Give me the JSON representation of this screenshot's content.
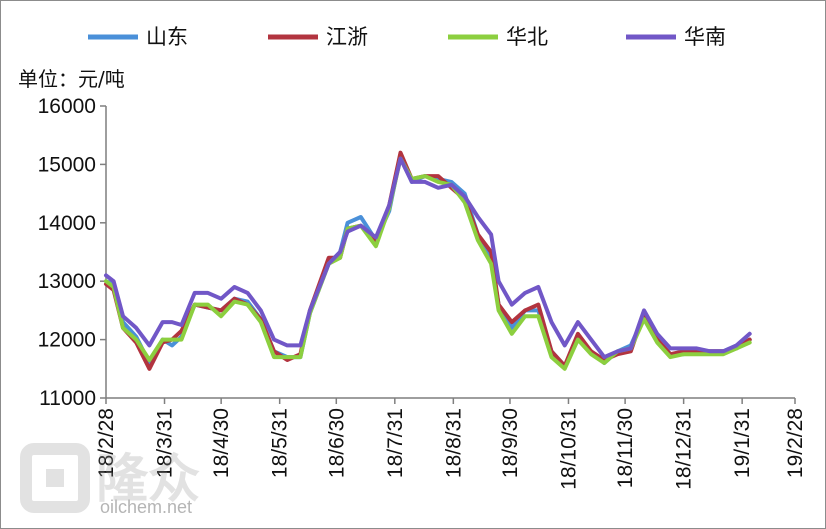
{
  "chart_data": {
    "type": "line",
    "unit_label": "单位：元/吨",
    "ylim": [
      11000,
      16000
    ],
    "y_ticks": [
      "11000",
      "12000",
      "13000",
      "14000",
      "15000",
      "16000"
    ],
    "x_ticks": [
      "18/2/28",
      "18/3/31",
      "18/4/30",
      "18/5/31",
      "18/6/30",
      "18/7/31",
      "18/8/31",
      "18/9/30",
      "18/10/31",
      "18/11/30",
      "18/12/31",
      "19/1/31",
      "19/2/28"
    ],
    "grid": false,
    "legend_position": "top",
    "series": [
      {
        "name": "山东",
        "color": "#4a90d9",
        "points": [
          [
            "2018-02-28",
            13000
          ],
          [
            "2018-03-04",
            12950
          ],
          [
            "2018-03-09",
            12300
          ],
          [
            "2018-03-16",
            12050
          ],
          [
            "2018-03-23",
            11600
          ],
          [
            "2018-03-30",
            12000
          ],
          [
            "2018-04-04",
            11900
          ],
          [
            "2018-04-09",
            12050
          ],
          [
            "2018-04-16",
            12600
          ],
          [
            "2018-04-23",
            12550
          ],
          [
            "2018-04-30",
            12500
          ],
          [
            "2018-05-07",
            12700
          ],
          [
            "2018-05-14",
            12650
          ],
          [
            "2018-05-21",
            12350
          ],
          [
            "2018-05-28",
            11800
          ],
          [
            "2018-06-04",
            11700
          ],
          [
            "2018-06-11",
            11700
          ],
          [
            "2018-06-16",
            12450
          ],
          [
            "2018-06-26",
            13300
          ],
          [
            "2018-07-02",
            13500
          ],
          [
            "2018-07-06",
            14000
          ],
          [
            "2018-07-13",
            14100
          ],
          [
            "2018-07-21",
            13700
          ],
          [
            "2018-07-28",
            14200
          ],
          [
            "2018-08-03",
            15150
          ],
          [
            "2018-08-09",
            14700
          ],
          [
            "2018-08-16",
            14800
          ],
          [
            "2018-08-23",
            14750
          ],
          [
            "2018-08-30",
            14700
          ],
          [
            "2018-09-06",
            14500
          ],
          [
            "2018-09-13",
            13800
          ],
          [
            "2018-09-20",
            13400
          ],
          [
            "2018-09-24",
            12600
          ],
          [
            "2018-10-01",
            12200
          ],
          [
            "2018-10-08",
            12500
          ],
          [
            "2018-10-15",
            12500
          ],
          [
            "2018-10-22",
            11800
          ],
          [
            "2018-10-29",
            11550
          ],
          [
            "2018-11-05",
            12000
          ],
          [
            "2018-11-12",
            11800
          ],
          [
            "2018-11-19",
            11600
          ],
          [
            "2018-11-26",
            11800
          ],
          [
            "2018-12-03",
            11900
          ],
          [
            "2018-12-10",
            12400
          ],
          [
            "2018-12-17",
            12000
          ],
          [
            "2018-12-24",
            11750
          ],
          [
            "2018-12-31",
            11750
          ],
          [
            "2019-01-07",
            11800
          ],
          [
            "2019-01-14",
            11800
          ],
          [
            "2019-01-21",
            11800
          ],
          [
            "2019-01-28",
            11900
          ],
          [
            "2019-02-04",
            12000
          ]
        ]
      },
      {
        "name": "江浙",
        "color": "#b2343f",
        "points": [
          [
            "2018-02-28",
            12950
          ],
          [
            "2018-03-04",
            12850
          ],
          [
            "2018-03-09",
            12200
          ],
          [
            "2018-03-16",
            11950
          ],
          [
            "2018-03-23",
            11500
          ],
          [
            "2018-03-30",
            11950
          ],
          [
            "2018-04-04",
            12000
          ],
          [
            "2018-04-09",
            12150
          ],
          [
            "2018-04-16",
            12600
          ],
          [
            "2018-04-23",
            12550
          ],
          [
            "2018-04-30",
            12500
          ],
          [
            "2018-05-07",
            12700
          ],
          [
            "2018-05-14",
            12600
          ],
          [
            "2018-05-21",
            12350
          ],
          [
            "2018-05-28",
            11800
          ],
          [
            "2018-06-04",
            11650
          ],
          [
            "2018-06-11",
            11750
          ],
          [
            "2018-06-16",
            12500
          ],
          [
            "2018-06-26",
            13400
          ],
          [
            "2018-07-02",
            13400
          ],
          [
            "2018-07-06",
            13900
          ],
          [
            "2018-07-13",
            13950
          ],
          [
            "2018-07-21",
            13700
          ],
          [
            "2018-07-28",
            14300
          ],
          [
            "2018-08-03",
            15200
          ],
          [
            "2018-08-09",
            14750
          ],
          [
            "2018-08-16",
            14800
          ],
          [
            "2018-08-23",
            14800
          ],
          [
            "2018-08-30",
            14600
          ],
          [
            "2018-09-06",
            14400
          ],
          [
            "2018-09-13",
            13800
          ],
          [
            "2018-09-20",
            13500
          ],
          [
            "2018-09-24",
            12600
          ],
          [
            "2018-10-01",
            12300
          ],
          [
            "2018-10-08",
            12500
          ],
          [
            "2018-10-15",
            12600
          ],
          [
            "2018-10-22",
            11800
          ],
          [
            "2018-10-29",
            11550
          ],
          [
            "2018-11-05",
            12100
          ],
          [
            "2018-11-12",
            11800
          ],
          [
            "2018-11-19",
            11650
          ],
          [
            "2018-11-26",
            11750
          ],
          [
            "2018-12-03",
            11800
          ],
          [
            "2018-12-10",
            12450
          ],
          [
            "2018-12-17",
            12000
          ],
          [
            "2018-12-24",
            11750
          ],
          [
            "2018-12-31",
            11800
          ],
          [
            "2019-01-07",
            11800
          ],
          [
            "2019-01-14",
            11800
          ],
          [
            "2019-01-21",
            11800
          ],
          [
            "2019-01-28",
            11850
          ],
          [
            "2019-02-04",
            12000
          ]
        ]
      },
      {
        "name": "华北",
        "color": "#8ccf3f",
        "points": [
          [
            "2018-02-28",
            13000
          ],
          [
            "2018-03-04",
            12900
          ],
          [
            "2018-03-09",
            12200
          ],
          [
            "2018-03-16",
            12000
          ],
          [
            "2018-03-23",
            11650
          ],
          [
            "2018-03-30",
            12000
          ],
          [
            "2018-04-04",
            12000
          ],
          [
            "2018-04-09",
            12000
          ],
          [
            "2018-04-16",
            12600
          ],
          [
            "2018-04-23",
            12600
          ],
          [
            "2018-04-30",
            12400
          ],
          [
            "2018-05-07",
            12650
          ],
          [
            "2018-05-14",
            12600
          ],
          [
            "2018-05-21",
            12300
          ],
          [
            "2018-05-28",
            11700
          ],
          [
            "2018-06-04",
            11700
          ],
          [
            "2018-06-11",
            11700
          ],
          [
            "2018-06-16",
            12450
          ],
          [
            "2018-06-26",
            13300
          ],
          [
            "2018-07-02",
            13400
          ],
          [
            "2018-07-06",
            13900
          ],
          [
            "2018-07-13",
            13950
          ],
          [
            "2018-07-21",
            13600
          ],
          [
            "2018-07-28",
            14250
          ],
          [
            "2018-08-03",
            15100
          ],
          [
            "2018-08-09",
            14750
          ],
          [
            "2018-08-16",
            14800
          ],
          [
            "2018-08-23",
            14700
          ],
          [
            "2018-08-30",
            14650
          ],
          [
            "2018-09-06",
            14350
          ],
          [
            "2018-09-13",
            13700
          ],
          [
            "2018-09-20",
            13300
          ],
          [
            "2018-09-24",
            12500
          ],
          [
            "2018-10-01",
            12100
          ],
          [
            "2018-10-08",
            12400
          ],
          [
            "2018-10-15",
            12400
          ],
          [
            "2018-10-22",
            11700
          ],
          [
            "2018-10-29",
            11500
          ],
          [
            "2018-11-05",
            12000
          ],
          [
            "2018-11-12",
            11750
          ],
          [
            "2018-11-19",
            11600
          ],
          [
            "2018-11-26",
            11800
          ],
          [
            "2018-12-03",
            11850
          ],
          [
            "2018-12-10",
            12350
          ],
          [
            "2018-12-17",
            11950
          ],
          [
            "2018-12-24",
            11700
          ],
          [
            "2018-12-31",
            11750
          ],
          [
            "2019-01-07",
            11750
          ],
          [
            "2019-01-14",
            11750
          ],
          [
            "2019-01-21",
            11750
          ],
          [
            "2019-01-28",
            11850
          ],
          [
            "2019-02-04",
            11950
          ]
        ]
      },
      {
        "name": "华南",
        "color": "#7157c7",
        "points": [
          [
            "2018-02-28",
            13100
          ],
          [
            "2018-03-04",
            13000
          ],
          [
            "2018-03-09",
            12400
          ],
          [
            "2018-03-16",
            12200
          ],
          [
            "2018-03-23",
            11900
          ],
          [
            "2018-03-30",
            12300
          ],
          [
            "2018-04-04",
            12300
          ],
          [
            "2018-04-09",
            12250
          ],
          [
            "2018-04-16",
            12800
          ],
          [
            "2018-04-23",
            12800
          ],
          [
            "2018-04-30",
            12700
          ],
          [
            "2018-05-07",
            12900
          ],
          [
            "2018-05-14",
            12800
          ],
          [
            "2018-05-21",
            12500
          ],
          [
            "2018-05-28",
            12000
          ],
          [
            "2018-06-04",
            11900
          ],
          [
            "2018-06-11",
            11900
          ],
          [
            "2018-06-16",
            12500
          ],
          [
            "2018-06-26",
            13300
          ],
          [
            "2018-07-02",
            13500
          ],
          [
            "2018-07-06",
            13850
          ],
          [
            "2018-07-13",
            13950
          ],
          [
            "2018-07-21",
            13750
          ],
          [
            "2018-07-28",
            14300
          ],
          [
            "2018-08-03",
            15100
          ],
          [
            "2018-08-09",
            14700
          ],
          [
            "2018-08-16",
            14700
          ],
          [
            "2018-08-23",
            14600
          ],
          [
            "2018-08-30",
            14650
          ],
          [
            "2018-09-06",
            14450
          ],
          [
            "2018-09-13",
            14100
          ],
          [
            "2018-09-20",
            13800
          ],
          [
            "2018-09-24",
            13000
          ],
          [
            "2018-10-01",
            12600
          ],
          [
            "2018-10-08",
            12800
          ],
          [
            "2018-10-15",
            12900
          ],
          [
            "2018-10-22",
            12300
          ],
          [
            "2018-10-29",
            11900
          ],
          [
            "2018-11-05",
            12300
          ],
          [
            "2018-11-12",
            12000
          ],
          [
            "2018-11-19",
            11700
          ],
          [
            "2018-11-26",
            11800
          ],
          [
            "2018-12-03",
            11850
          ],
          [
            "2018-12-10",
            12500
          ],
          [
            "2018-12-17",
            12100
          ],
          [
            "2018-12-24",
            11850
          ],
          [
            "2018-12-31",
            11850
          ],
          [
            "2019-01-07",
            11850
          ],
          [
            "2019-01-14",
            11800
          ],
          [
            "2019-01-21",
            11800
          ],
          [
            "2019-01-28",
            11900
          ],
          [
            "2019-02-04",
            12100
          ]
        ]
      }
    ]
  },
  "watermark": {
    "logo_text": "隆众",
    "url": "oilchem.net"
  }
}
